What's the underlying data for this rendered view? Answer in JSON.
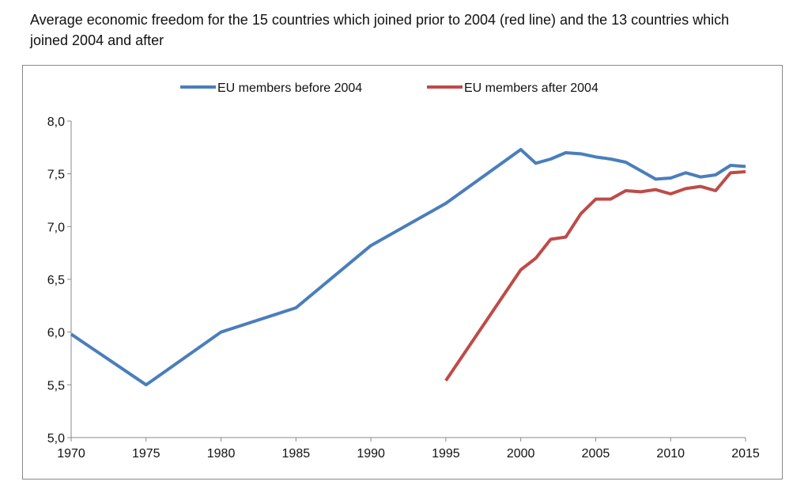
{
  "chart_data": {
    "type": "line",
    "title": "Average economic freedom for the 15 countries which joined prior to 2004 (red line) and the 13 countries which joined 2004 and after",
    "xlabel": "",
    "ylabel": "",
    "xlim": [
      1970,
      2015
    ],
    "ylim": [
      5.0,
      8.0
    ],
    "x_ticks": [
      "1970",
      "1975",
      "1980",
      "1985",
      "1990",
      "1995",
      "2000",
      "2005",
      "2010",
      "2015"
    ],
    "y_ticks": [
      "5,0",
      "5,5",
      "6,0",
      "6,5",
      "7,0",
      "7,5",
      "8,0"
    ],
    "legend_position": "top",
    "series": [
      {
        "name": "EU members before 2004",
        "color": "#4a7ebb",
        "x": [
          1970,
          1975,
          1980,
          1985,
          1990,
          1995,
          2000,
          2001,
          2002,
          2003,
          2004,
          2005,
          2006,
          2007,
          2008,
          2009,
          2010,
          2011,
          2012,
          2013,
          2014,
          2015
        ],
        "values": [
          5.98,
          5.5,
          6.0,
          6.23,
          6.82,
          7.22,
          7.73,
          7.6,
          7.64,
          7.7,
          7.69,
          7.66,
          7.64,
          7.61,
          7.53,
          7.45,
          7.46,
          7.51,
          7.47,
          7.49,
          7.58,
          7.57
        ]
      },
      {
        "name": "EU members after 2004",
        "color": "#be4b48",
        "x": [
          1995,
          2000,
          2001,
          2002,
          2003,
          2004,
          2005,
          2006,
          2007,
          2008,
          2009,
          2010,
          2011,
          2012,
          2013,
          2014,
          2015
        ],
        "values": [
          5.54,
          6.59,
          6.7,
          6.88,
          6.9,
          7.12,
          7.26,
          7.26,
          7.34,
          7.33,
          7.35,
          7.31,
          7.36,
          7.38,
          7.34,
          7.51,
          7.52
        ]
      }
    ]
  }
}
